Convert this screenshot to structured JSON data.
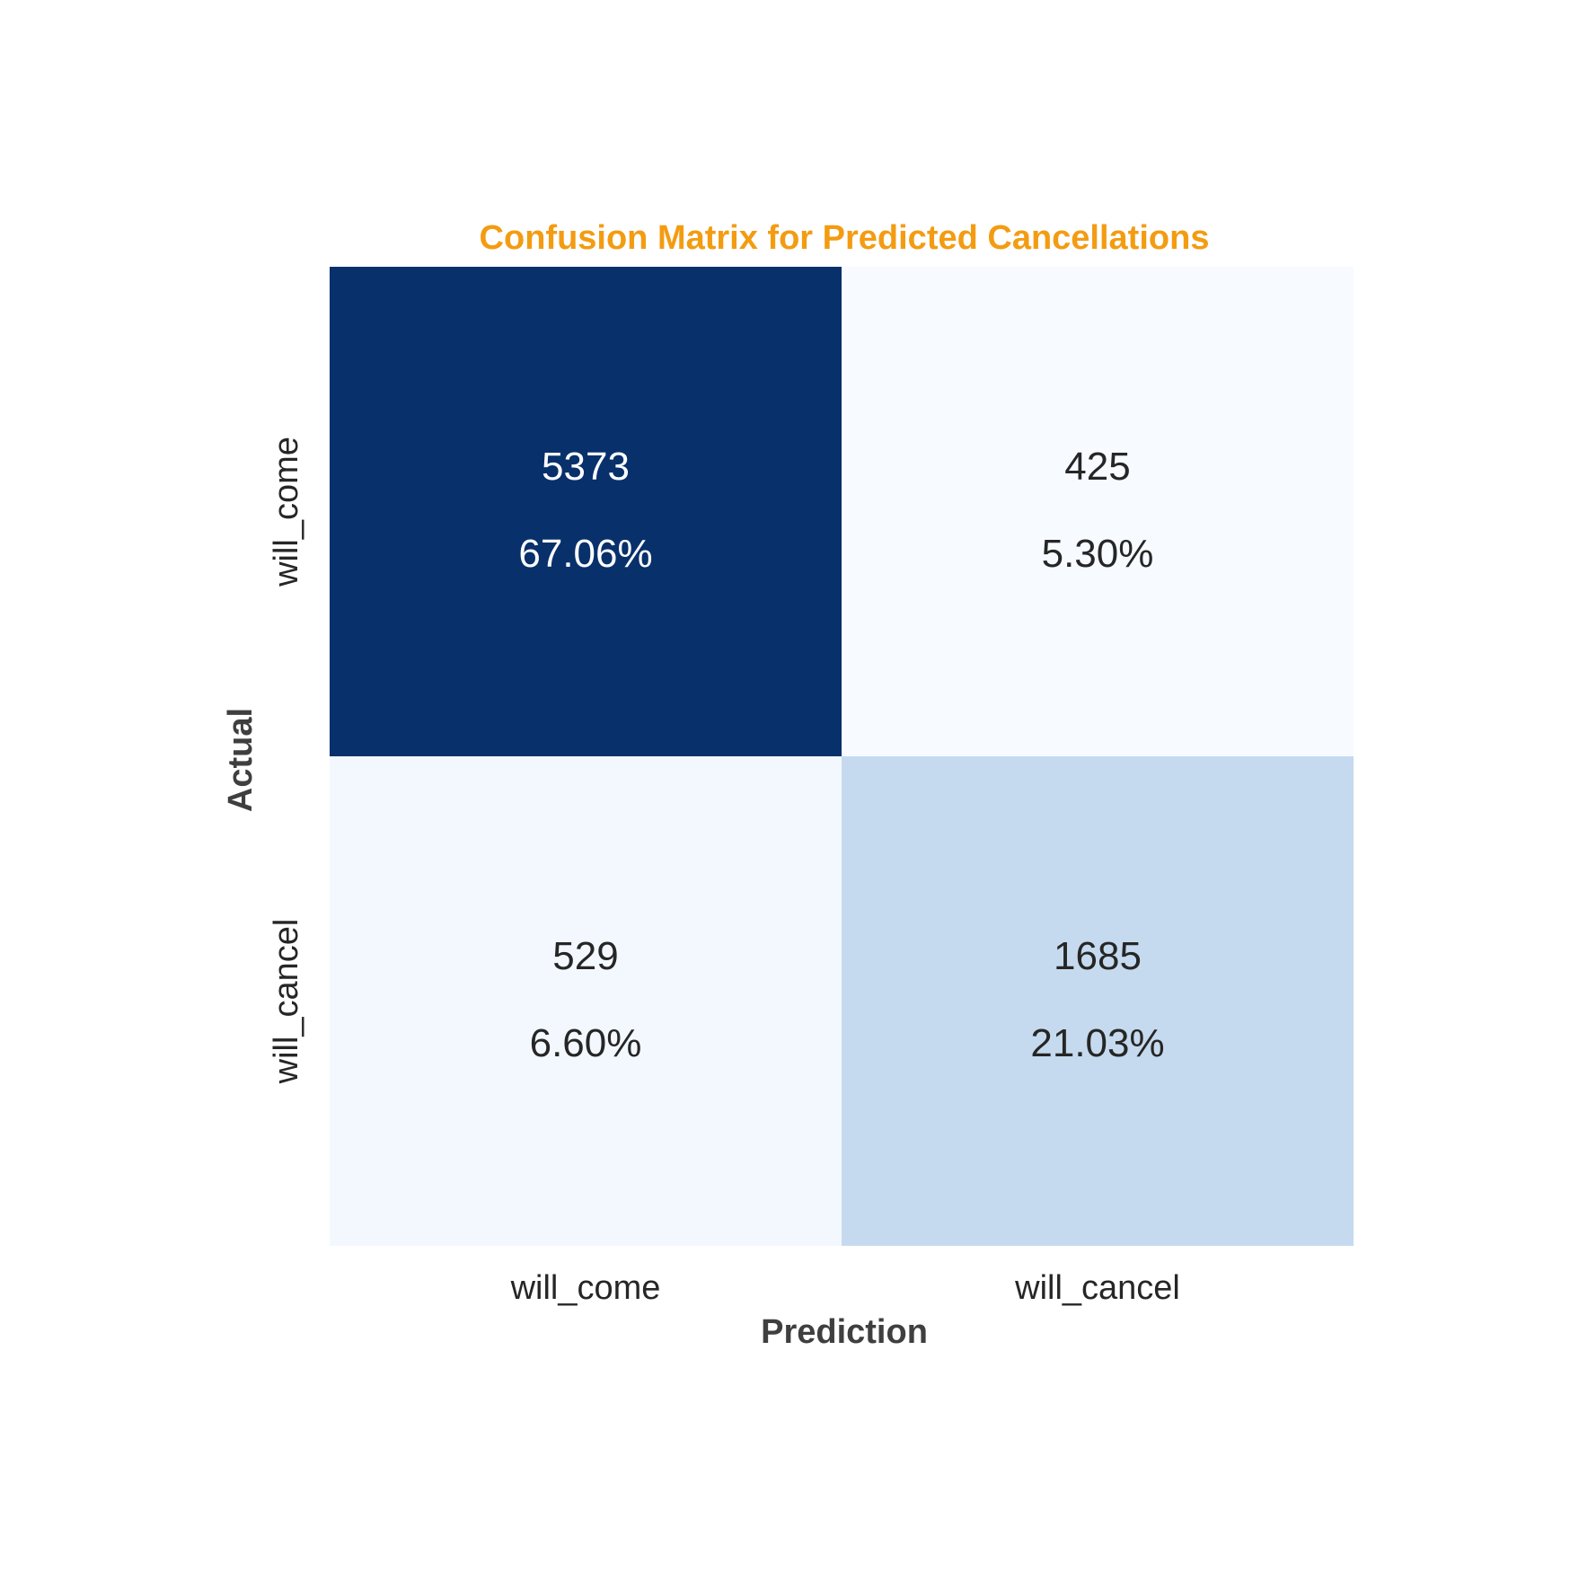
{
  "chart_data": {
    "type": "heatmap",
    "title": "Confusion Matrix for Predicted Cancellations",
    "xlabel": "Prediction",
    "ylabel": "Actual",
    "x_categories": [
      "will_come",
      "will_cancel"
    ],
    "y_categories": [
      "will_come",
      "will_cancel"
    ],
    "values": [
      [
        5373,
        425
      ],
      [
        529,
        1685
      ]
    ],
    "percent_labels": [
      [
        "67.06%",
        "5.30%"
      ],
      [
        "6.60%",
        "21.03%"
      ]
    ],
    "colormap": "Blues",
    "colorbar": false,
    "title_color": "#F39C12",
    "label_color": "#3f3f3f",
    "text_color_dark": "#262626",
    "text_color_light": "#ffffff"
  }
}
